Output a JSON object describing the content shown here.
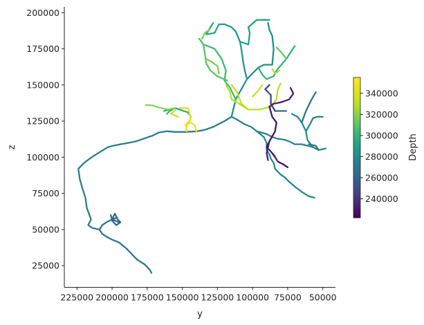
{
  "chart_data": {
    "type": "line",
    "title": "",
    "xlabel": "y",
    "ylabel": "z",
    "xlim": [
      234000,
      41000
    ],
    "ylim": [
      10000,
      204000
    ],
    "x_inverted": true,
    "xticks": [
      225000,
      200000,
      175000,
      150000,
      125000,
      100000,
      75000,
      50000
    ],
    "xtick_labels": [
      "225000",
      "200000",
      "175000",
      "150000",
      "125000",
      "100000",
      "75000",
      "50000"
    ],
    "yticks": [
      25000,
      50000,
      75000,
      100000,
      125000,
      150000,
      175000,
      200000
    ],
    "ytick_labels": [
      "25000",
      "50000",
      "75000",
      "100000",
      "125000",
      "150000",
      "175000",
      "200000"
    ],
    "grid": false,
    "colorbar": {
      "label": "Depth",
      "colormap": "viridis",
      "range": [
        222000,
        355000
      ],
      "ticks": [
        240000,
        260000,
        280000,
        300000,
        320000,
        340000
      ],
      "tick_labels": [
        "240000",
        "260000",
        "280000",
        "300000",
        "320000",
        "340000"
      ]
    },
    "series": [
      {
        "depth": 268000,
        "points": [
          [
            172000,
            20000
          ],
          [
            173000,
            22000
          ],
          [
            177000,
            26000
          ],
          [
            182000,
            29000
          ],
          [
            185000,
            32000
          ],
          [
            190000,
            37000
          ],
          [
            195000,
            41000
          ],
          [
            200000,
            43000
          ],
          [
            204000,
            45000
          ],
          [
            207000,
            47000
          ],
          [
            209000,
            50000
          ],
          [
            207000,
            53000
          ],
          [
            204000,
            55000
          ],
          [
            200000,
            57000
          ],
          [
            197000,
            58000
          ]
        ]
      },
      {
        "depth": 272000,
        "points": [
          [
            209000,
            50000
          ],
          [
            214000,
            51000
          ],
          [
            217000,
            53000
          ],
          [
            215000,
            57000
          ],
          [
            218000,
            65000
          ],
          [
            219000,
            72000
          ],
          [
            221000,
            78000
          ],
          [
            223000,
            85000
          ],
          [
            224000,
            92000
          ],
          [
            220000,
            96000
          ],
          [
            216000,
            99000
          ],
          [
            213000,
            101000
          ],
          [
            208000,
            104000
          ],
          [
            203000,
            107000
          ],
          [
            199000,
            108000
          ],
          [
            194000,
            109000
          ],
          [
            188000,
            110000
          ],
          [
            183000,
            111000
          ],
          [
            177000,
            113000
          ],
          [
            171000,
            115000
          ],
          [
            167000,
            117000
          ],
          [
            161000,
            118000
          ],
          [
            155000,
            117500
          ],
          [
            148000,
            117500
          ],
          [
            139000,
            118000
          ],
          [
            134000,
            119000
          ],
          [
            128000,
            121000
          ],
          [
            124000,
            123000
          ],
          [
            120000,
            125000
          ],
          [
            115000,
            128000
          ]
        ]
      },
      {
        "depth": 262000,
        "points": [
          [
            200000,
            56000
          ],
          [
            199000,
            59000
          ],
          [
            198000,
            61000
          ],
          [
            196000,
            57000
          ],
          [
            194000,
            55000
          ],
          [
            197000,
            53000
          ],
          [
            199000,
            55000
          ],
          [
            201000,
            60000
          ],
          [
            200000,
            57000
          ],
          [
            195000,
            55000
          ]
        ]
      },
      {
        "depth": 282000,
        "points": [
          [
            115000,
            128000
          ],
          [
            114000,
            132000
          ],
          [
            112000,
            140000
          ],
          [
            108000,
            147000
          ],
          [
            104000,
            154000
          ],
          [
            100000,
            158000
          ],
          [
            96000,
            162000
          ],
          [
            92000,
            164000
          ],
          [
            86000,
            164000
          ],
          [
            85000,
            175000
          ],
          [
            86000,
            184000
          ],
          [
            88000,
            188000
          ],
          [
            89000,
            193000
          ]
        ]
      },
      {
        "depth": 286000,
        "points": [
          [
            104000,
            154000
          ],
          [
            106000,
            162000
          ],
          [
            107000,
            168000
          ],
          [
            108000,
            175000
          ],
          [
            109000,
            180000
          ],
          [
            112000,
            187000
          ],
          [
            115000,
            190000
          ],
          [
            120000,
            192000
          ],
          [
            124000,
            192000
          ]
        ]
      },
      {
        "depth": 290000,
        "points": [
          [
            109000,
            180000
          ],
          [
            103000,
            178000
          ],
          [
            102000,
            186000
          ],
          [
            103000,
            190000
          ],
          [
            97000,
            195000
          ],
          [
            88000,
            195000
          ]
        ]
      },
      {
        "depth": 292000,
        "points": [
          [
            124000,
            192000
          ],
          [
            127000,
            186000
          ],
          [
            133000,
            185000
          ],
          [
            128000,
            193000
          ]
        ]
      },
      {
        "depth": 304000,
        "points": [
          [
            112000,
            140000
          ],
          [
            116000,
            148000
          ],
          [
            120000,
            153000
          ],
          [
            119000,
            160000
          ],
          [
            122000,
            168000
          ],
          [
            127000,
            175000
          ],
          [
            135000,
            178000
          ],
          [
            138000,
            182000
          ]
        ]
      },
      {
        "depth": 310000,
        "points": [
          [
            135000,
            178000
          ],
          [
            134000,
            172000
          ],
          [
            133000,
            165000
          ],
          [
            130000,
            160000
          ],
          [
            125000,
            156000
          ],
          [
            118000,
            153000
          ]
        ]
      },
      {
        "depth": 300000,
        "points": [
          [
            96000,
            162000
          ],
          [
            93000,
            157000
          ],
          [
            90000,
            154000
          ],
          [
            85000,
            156000
          ],
          [
            83000,
            160000
          ],
          [
            76000,
            168000
          ],
          [
            72000,
            174000
          ],
          [
            70000,
            177000
          ]
        ]
      },
      {
        "depth": 312000,
        "points": [
          [
            76000,
            168000
          ],
          [
            79000,
            172000
          ],
          [
            83000,
            176000
          ]
        ]
      },
      {
        "depth": 326000,
        "points": [
          [
            81000,
            160000
          ],
          [
            84000,
            158000
          ],
          [
            86000,
            161000
          ]
        ]
      },
      {
        "depth": 318000,
        "points": [
          [
            136000,
            182000
          ],
          [
            134000,
            186000
          ],
          [
            131000,
            188000
          ]
        ]
      },
      {
        "depth": 330000,
        "points": [
          [
            119000,
            150000
          ],
          [
            116000,
            145000
          ],
          [
            115000,
            140000
          ],
          [
            111000,
            138000
          ],
          [
            108000,
            136000
          ],
          [
            103000,
            133000
          ],
          [
            95000,
            133000
          ],
          [
            87000,
            135000
          ],
          [
            83000,
            140000
          ],
          [
            82000,
            147000
          ],
          [
            80000,
            151000
          ]
        ]
      },
      {
        "depth": 332000,
        "points": [
          [
            103000,
            133000
          ],
          [
            108000,
            137000
          ],
          [
            111000,
            145000
          ],
          [
            115000,
            150000
          ]
        ]
      },
      {
        "depth": 336000,
        "points": [
          [
            93000,
            150000
          ],
          [
            97000,
            145000
          ],
          [
            100000,
            142000
          ]
        ]
      },
      {
        "depth": 318000,
        "points": [
          [
            133000,
            168000
          ],
          [
            129000,
            166000
          ],
          [
            125000,
            163000
          ],
          [
            124000,
            158000
          ]
        ]
      },
      {
        "depth": 275000,
        "points": [
          [
            115000,
            128000
          ],
          [
            111000,
            126000
          ],
          [
            106000,
            123000
          ],
          [
            101000,
            121000
          ],
          [
            97000,
            118000
          ],
          [
            90000,
            116000
          ],
          [
            86000,
            114000
          ],
          [
            83000,
            113000
          ],
          [
            77000,
            112000
          ],
          [
            74000,
            111000
          ],
          [
            70000,
            109000
          ],
          [
            65000,
            109000
          ],
          [
            57000,
            107000
          ],
          [
            53000,
            105000
          ],
          [
            48000,
            106000
          ]
        ]
      },
      {
        "depth": 278000,
        "points": [
          [
            97000,
            118000
          ],
          [
            92000,
            114000
          ],
          [
            90000,
            110000
          ],
          [
            90000,
            105000
          ],
          [
            88000,
            102000
          ],
          [
            87000,
            99000
          ],
          [
            85000,
            96000
          ],
          [
            84000,
            92000
          ],
          [
            82000,
            90000
          ],
          [
            80000,
            88000
          ],
          [
            77000,
            86000
          ],
          [
            74000,
            83000
          ],
          [
            69000,
            79000
          ],
          [
            65000,
            76000
          ],
          [
            60000,
            73000
          ],
          [
            56000,
            72000
          ]
        ]
      },
      {
        "depth": 282000,
        "points": [
          [
            57000,
            107000
          ],
          [
            61000,
            112000
          ],
          [
            62000,
            118000
          ],
          [
            65000,
            124000
          ],
          [
            68000,
            128000
          ],
          [
            72000,
            130000
          ]
        ]
      },
      {
        "depth": 276000,
        "points": [
          [
            62000,
            118000
          ],
          [
            59000,
            123000
          ],
          [
            57000,
            127000
          ],
          [
            54000,
            128000
          ],
          [
            50000,
            128000
          ]
        ]
      },
      {
        "depth": 268000,
        "points": [
          [
            65000,
            124000
          ],
          [
            62000,
            132000
          ],
          [
            58000,
            140000
          ],
          [
            55000,
            145000
          ]
        ]
      },
      {
        "depth": 270000,
        "points": [
          [
            53000,
            105000
          ],
          [
            55000,
            108000
          ],
          [
            60000,
            109000
          ]
        ]
      },
      {
        "depth": 262000,
        "points": [
          [
            84000,
            132000
          ],
          [
            80000,
            132000
          ],
          [
            76000,
            132000
          ]
        ]
      },
      {
        "depth": 248000,
        "points": [
          [
            84000,
            132000
          ],
          [
            87000,
            137000
          ],
          [
            87000,
            143000
          ],
          [
            91000,
            147000
          ],
          [
            88000,
            150000
          ]
        ]
      },
      {
        "depth": 232000,
        "points": [
          [
            73000,
            148000
          ],
          [
            71000,
            144000
          ],
          [
            74000,
            140000
          ],
          [
            80000,
            138000
          ],
          [
            85000,
            137000
          ],
          [
            88000,
            135000
          ]
        ]
      },
      {
        "depth": 228000,
        "points": [
          [
            88000,
            135000
          ],
          [
            86000,
            128000
          ],
          [
            83000,
            124000
          ],
          [
            84000,
            118000
          ],
          [
            88000,
            111000
          ],
          [
            90000,
            107000
          ],
          [
            87000,
            104000
          ],
          [
            84000,
            100000
          ],
          [
            82000,
            97000
          ],
          [
            78000,
            95000
          ],
          [
            75000,
            93000
          ]
        ]
      },
      {
        "depth": 232000,
        "points": [
          [
            88000,
            111000
          ],
          [
            90000,
            103000
          ],
          [
            89000,
            98000
          ]
        ]
      },
      {
        "depth": 242000,
        "points": [
          [
            82000,
            97000
          ],
          [
            85000,
            102000
          ]
        ]
      },
      {
        "depth": 296000,
        "points": [
          [
            144000,
            128000
          ],
          [
            146000,
            131000
          ],
          [
            155000,
            134000
          ],
          [
            159000,
            133000
          ],
          [
            163000,
            132000
          ]
        ]
      },
      {
        "depth": 342000,
        "points": [
          [
            147000,
            118000
          ],
          [
            147000,
            123000
          ],
          [
            144000,
            126000
          ],
          [
            145000,
            131000
          ],
          [
            146000,
            134000
          ],
          [
            152000,
            134000
          ]
        ]
      },
      {
        "depth": 346000,
        "points": [
          [
            140000,
            118000
          ],
          [
            141000,
            122000
          ],
          [
            144000,
            124000
          ],
          [
            148000,
            122000
          ]
        ]
      },
      {
        "depth": 320000,
        "points": [
          [
            155000,
            134000
          ],
          [
            160000,
            133000
          ],
          [
            165000,
            134000
          ],
          [
            172000,
            136000
          ],
          [
            176000,
            136000
          ]
        ]
      },
      {
        "depth": 300000,
        "points": [
          [
            157000,
            133000
          ],
          [
            159000,
            132000
          ],
          [
            161000,
            130000
          ]
        ]
      },
      {
        "depth": 336000,
        "points": [
          [
            155000,
            133000
          ],
          [
            158000,
            130000
          ],
          [
            153000,
            128000
          ]
        ]
      }
    ]
  }
}
